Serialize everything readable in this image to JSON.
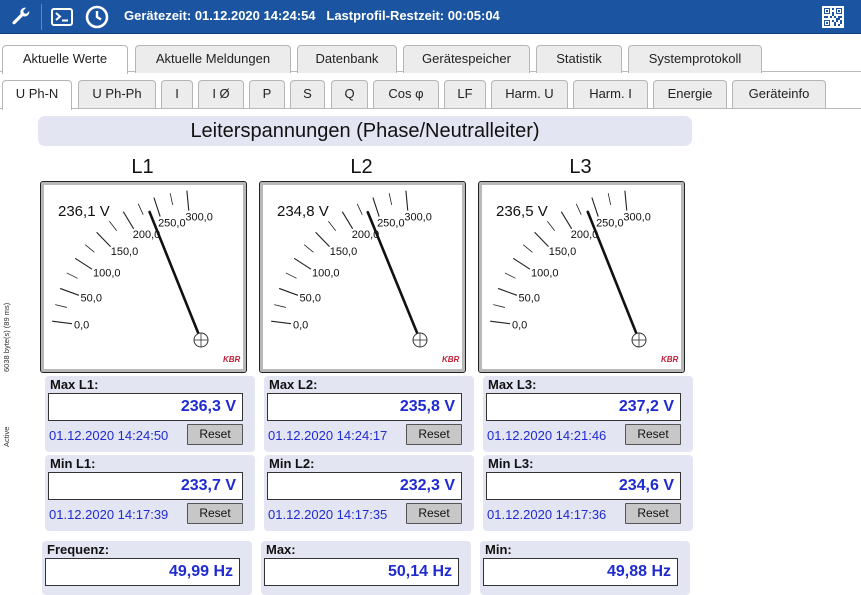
{
  "header": {
    "device_time_label": "Gerätezeit:",
    "device_time": "01.12.2020 14:24:54",
    "profile_label": "Lastprofil-Restzeit:",
    "profile_time": "00:05:04",
    "icons": [
      "wrench-icon",
      "terminal-icon",
      "clock-icon",
      "qr-code-icon"
    ]
  },
  "tabs_main": [
    "Aktuelle Werte",
    "Aktuelle Meldungen",
    "Datenbank",
    "Gerätespeicher",
    "Statistik",
    "Systemprotokoll"
  ],
  "tabs_sub": [
    "U Ph-N",
    "U Ph-Ph",
    "I",
    "I Ø",
    "P",
    "S",
    "Q",
    "Cos φ",
    "LF",
    "Harm. U",
    "Harm. I",
    "Energie",
    "Geräteinfo"
  ],
  "title": "Leiterspannungen (Phase/Neutralleiter)",
  "sidebar": {
    "bytes": "6038 byte(s) (89 ms)",
    "status": "Active"
  },
  "meter_scale": {
    "min": 0,
    "max": 300,
    "labels": [
      "0,0",
      "50,0",
      "100,0",
      "150,0",
      "200,0",
      "250,0",
      "300,0"
    ],
    "brand": "KBR"
  },
  "phases": [
    {
      "name": "L1",
      "reading": "236,1 V",
      "value": 236.1,
      "max_label": "Max L1:",
      "max": "236,3 V",
      "max_time": "01.12.2020 14:24:50",
      "min_label": "Min L1:",
      "min": "233,7 V",
      "min_time": "01.12.2020 14:17:39"
    },
    {
      "name": "L2",
      "reading": "234,8 V",
      "value": 234.8,
      "max_label": "Max L2:",
      "max": "235,8 V",
      "max_time": "01.12.2020 14:24:17",
      "min_label": "Min L2:",
      "min": "232,3 V",
      "min_time": "01.12.2020 14:17:35"
    },
    {
      "name": "L3",
      "reading": "236,5 V",
      "value": 236.5,
      "max_label": "Max L3:",
      "max": "237,2 V",
      "max_time": "01.12.2020 14:21:46",
      "min_label": "Min L3:",
      "min": "234,6 V",
      "min_time": "01.12.2020 14:17:36"
    }
  ],
  "reset_label": "Reset",
  "frequency": {
    "label": "Frequenz:",
    "value": "49,99 Hz",
    "max_label": "Max:",
    "max": "50,14 Hz",
    "min_label": "Min:",
    "min": "49,88 Hz"
  }
}
